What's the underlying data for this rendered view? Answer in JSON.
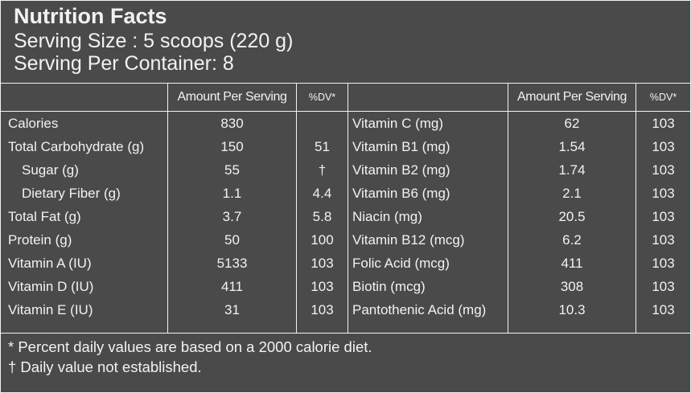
{
  "header": {
    "title": "Nutrition Facts",
    "serving_size": "Serving Size :  5 scoops (220 g)",
    "servings_per_container": "Serving Per Container: 8"
  },
  "columns": {
    "amount": "Amount Per Serving",
    "dv": "%DV*"
  },
  "left_rows": [
    {
      "label": "Calories",
      "amount": "830",
      "dv": ""
    },
    {
      "label": "Total Carbohydrate (g)",
      "amount": "150",
      "dv": "51"
    },
    {
      "label": "Sugar (g)",
      "amount": "55",
      "dv": "†"
    },
    {
      "label": "Dietary Fiber (g)",
      "amount": "1.1",
      "dv": "4.4"
    },
    {
      "label": "Total Fat (g)",
      "amount": "3.7",
      "dv": "5.8"
    },
    {
      "label": "Protein (g)",
      "amount": "50",
      "dv": "100"
    },
    {
      "label": "Vitamin A (IU)",
      "amount": "5133",
      "dv": "103"
    },
    {
      "label": "Vitamin D (IU)",
      "amount": "411",
      "dv": "103"
    },
    {
      "label": "Vitamin E (IU)",
      "amount": "31",
      "dv": "103"
    }
  ],
  "right_rows": [
    {
      "label": "Vitamin C (mg)",
      "amount": "62",
      "dv": "103"
    },
    {
      "label": "Vitamin B1 (mg)",
      "amount": "1.54",
      "dv": "103"
    },
    {
      "label": "Vitamin B2 (mg)",
      "amount": "1.74",
      "dv": "103"
    },
    {
      "label": "Vitamin B6 (mg)",
      "amount": "2.1",
      "dv": "103"
    },
    {
      "label": "Niacin (mg)",
      "amount": "20.5",
      "dv": "103"
    },
    {
      "label": "Vitamin B12 (mcg)",
      "amount": "6.2",
      "dv": "103"
    },
    {
      "label": "Folic Acid (mcg)",
      "amount": "411",
      "dv": "103"
    },
    {
      "label": "Biotin (mcg)",
      "amount": "308",
      "dv": "103"
    },
    {
      "label": "Pantothenic Acid (mg)",
      "amount": "10.3",
      "dv": "103"
    }
  ],
  "footnotes": {
    "percent_note": "* Percent daily values are based on a 2000 calorie diet.",
    "dagger_note": "† Daily value not established."
  },
  "colors": {
    "background": "#4a4a4a",
    "text": "#f2f2f2",
    "rule": "#f2f2f2"
  }
}
